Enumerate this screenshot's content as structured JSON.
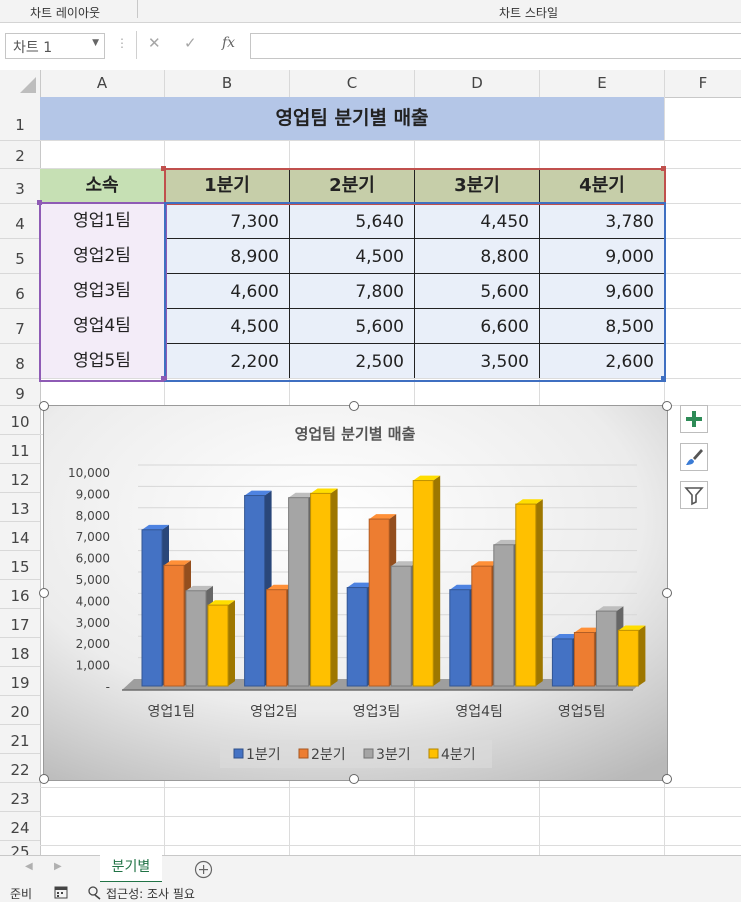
{
  "ribbon": {
    "group1": "차트 레이아웃",
    "group2": "차트 스타일"
  },
  "formula_bar": {
    "name_box": "차트 1",
    "cancel_icon": "✕",
    "enter_icon": "✓",
    "fx": "fx",
    "formula": ""
  },
  "columns": [
    "A",
    "B",
    "C",
    "D",
    "E",
    "F"
  ],
  "rows": [
    "1",
    "2",
    "3",
    "4",
    "5",
    "6",
    "7",
    "8",
    "9",
    "10",
    "11",
    "12",
    "13",
    "14",
    "15",
    "16",
    "17",
    "18",
    "19",
    "20",
    "21",
    "22",
    "23",
    "24",
    "25"
  ],
  "table": {
    "title": "영업팀 분기별 매출",
    "header": [
      "소속",
      "1분기",
      "2분기",
      "3분기",
      "4분기"
    ],
    "rows": [
      [
        "영업1팀",
        "7,300",
        "5,640",
        "4,450",
        "3,780"
      ],
      [
        "영업2팀",
        "8,900",
        "4,500",
        "8,800",
        "9,000"
      ],
      [
        "영업3팀",
        "4,600",
        "7,800",
        "5,600",
        "9,600"
      ],
      [
        "영업4팀",
        "4,500",
        "5,600",
        "6,600",
        "8,500"
      ],
      [
        "영업5팀",
        "2,200",
        "2,500",
        "3,500",
        "2,600"
      ]
    ]
  },
  "chart_data": {
    "type": "bar",
    "title": "영업팀 분기별 매출",
    "categories": [
      "영업1팀",
      "영업2팀",
      "영업3팀",
      "영업4팀",
      "영업5팀"
    ],
    "series": [
      {
        "name": "1분기",
        "values": [
          7300,
          8900,
          4600,
          4500,
          2200
        ],
        "color": "#4472c4"
      },
      {
        "name": "2분기",
        "values": [
          5640,
          4500,
          7800,
          5600,
          2500
        ],
        "color": "#ed7d31"
      },
      {
        "name": "3분기",
        "values": [
          4450,
          8800,
          5600,
          6600,
          3500
        ],
        "color": "#a5a5a5"
      },
      {
        "name": "4분기",
        "values": [
          3780,
          9000,
          9600,
          8500,
          2600
        ],
        "color": "#ffc000"
      }
    ],
    "yticks": [
      "-",
      "1,000",
      "2,000",
      "3,000",
      "4,000",
      "5,000",
      "6,000",
      "7,000",
      "8,000",
      "9,000",
      "10,000"
    ],
    "ylim": [
      0,
      10000
    ],
    "legend": "bottom",
    "grid": true,
    "style": "3d-clustered-column"
  },
  "chart_buttons": [
    "plus-icon",
    "brush-icon",
    "filter-icon"
  ],
  "sheet_tab": "분기별",
  "status": {
    "ready": "준비",
    "accessibility": "접근성: 조사 필요"
  }
}
